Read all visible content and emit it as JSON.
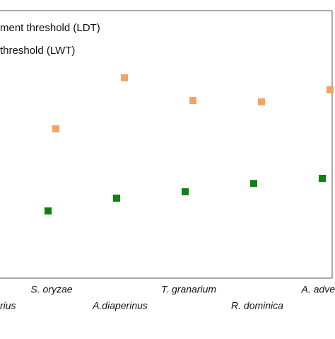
{
  "chart_data": {
    "type": "scatter",
    "categories": [
      "rius",
      "S. oryzae",
      "A.diaperinus",
      "T. granarium",
      "R. dominica",
      "A. adve"
    ],
    "series": [
      {
        "name": "ment threshold (LDT)",
        "color": "#f4a460",
        "values": [
          null,
          55.8,
          74.9,
          66.4,
          65.9,
          70.4
        ]
      },
      {
        "name": "threshold (LWT)",
        "color": "#118011",
        "values": [
          null,
          25.1,
          29.9,
          32.3,
          35.4,
          37.3
        ]
      }
    ],
    "ylim": [
      0,
      100
    ]
  }
}
